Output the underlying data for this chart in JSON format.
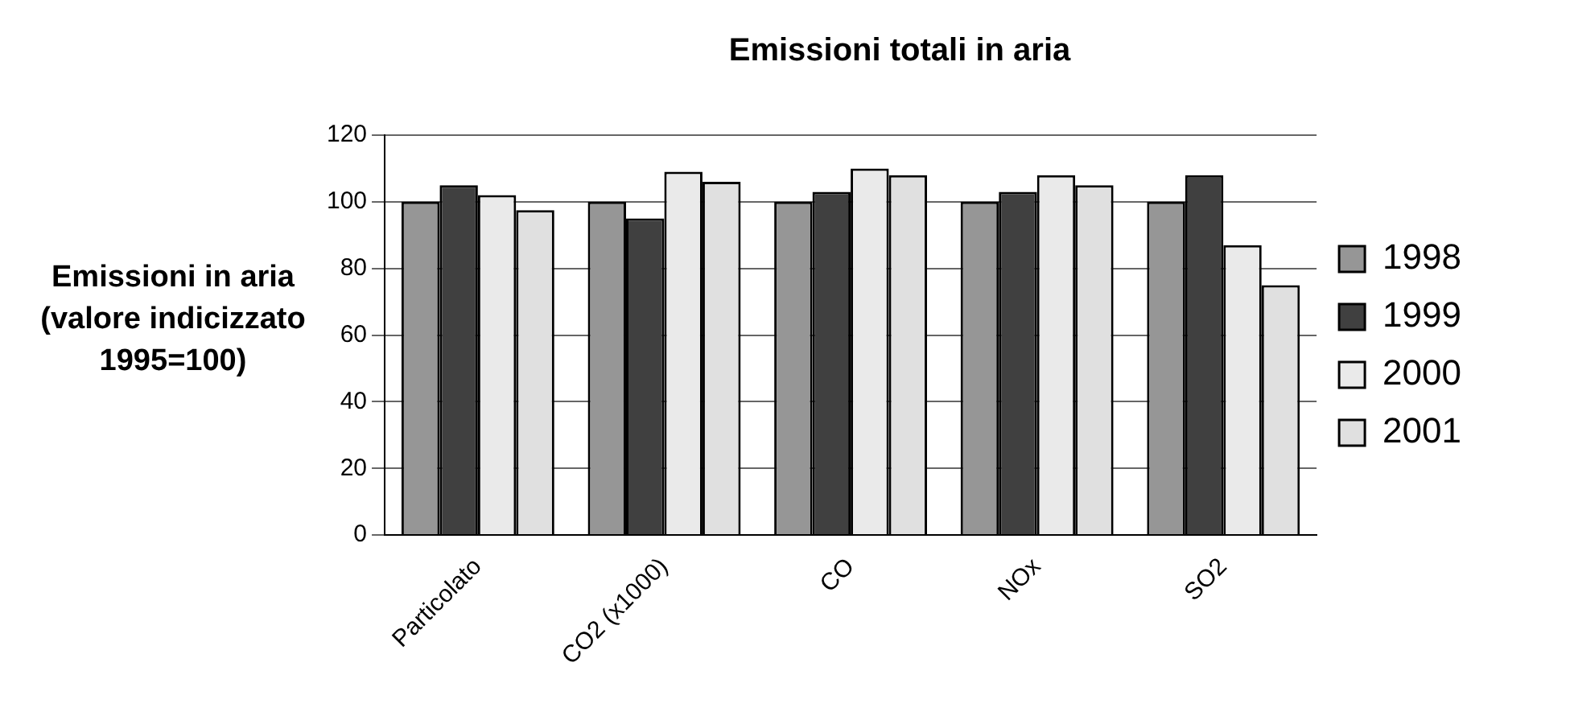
{
  "chart_data": {
    "type": "bar",
    "title": "Emissioni totali in aria",
    "ylabel": "Emissioni in aria (valore indicizzato 1995=100)",
    "categories": [
      "Particolato",
      "CO2 (x1000)",
      "CO",
      "NOx",
      "SO2"
    ],
    "series": [
      {
        "name": "1998",
        "color": "#969696",
        "values": [
          100,
          100,
          100,
          100,
          100
        ]
      },
      {
        "name": "1999",
        "color": "#404040",
        "values": [
          105,
          95,
          103,
          103,
          108
        ]
      },
      {
        "name": "2000",
        "color": "#eaeaea",
        "values": [
          102,
          109,
          110,
          108,
          87
        ]
      },
      {
        "name": "2001",
        "color": "#e0e0e0",
        "values": [
          97.5,
          106,
          108,
          105,
          75
        ]
      }
    ],
    "ylim": [
      0,
      120
    ],
    "yticks": [
      0,
      20,
      40,
      60,
      80,
      100,
      120
    ],
    "grid": "y",
    "legend": "right"
  }
}
